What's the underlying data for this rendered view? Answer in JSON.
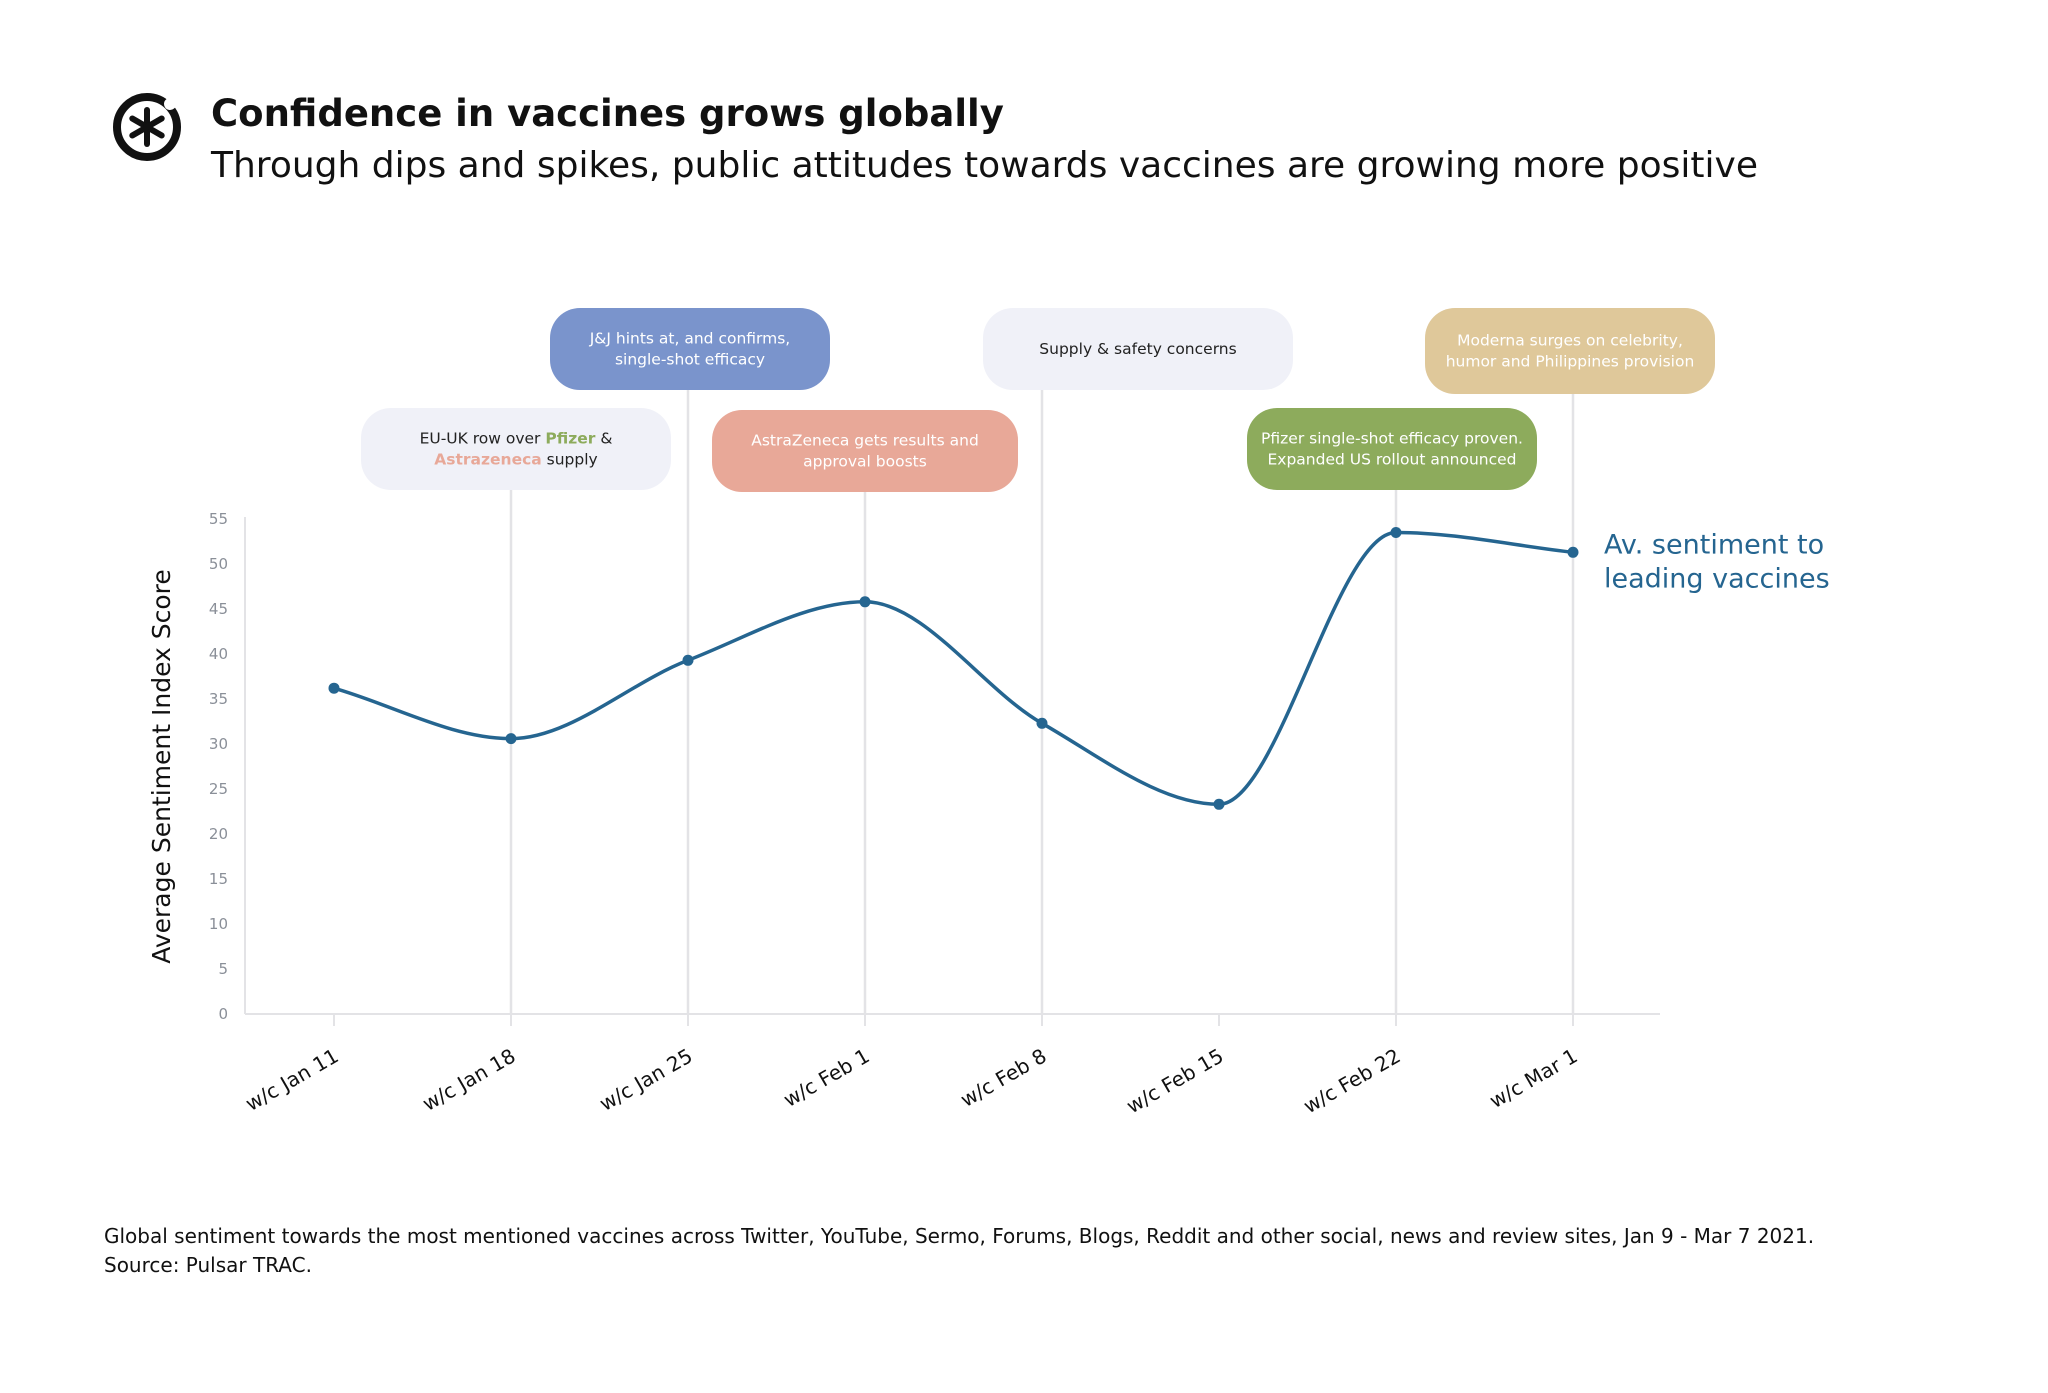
{
  "header": {
    "title": "Confidence in vaccines grows globally",
    "subtitle": "Through dips and spikes, public attitudes towards vaccines are growing more positive"
  },
  "footer": {
    "line1": "Global sentiment towards the most mentioned vaccines across Twitter, YouTube, Sermo, Forums, Blogs, Reddit and other social, news and review sites, Jan 9 - Mar 7 2021.",
    "line2": "Source: Pulsar TRAC."
  },
  "colors": {
    "line": "#256590",
    "grid": "#e3e3e6",
    "lilac": "#f0f1f8",
    "blue": "#7a94cc",
    "salmon": "#e8a898",
    "green": "#8dab5c",
    "sand": "#dfc89a",
    "pfizer_text": "#8dab5c",
    "astrazeneca_text": "#e8a898"
  },
  "chart_data": {
    "type": "line",
    "title": "",
    "xlabel": "",
    "ylabel": "Average Sentiment Index Score",
    "ylim": [
      0,
      55
    ],
    "yticks": [
      0,
      5,
      10,
      15,
      20,
      25,
      30,
      35,
      40,
      45,
      50,
      55
    ],
    "grid": false,
    "categories": [
      "w/c Jan 11",
      "w/c Jan 18",
      "w/c Jan 25",
      "w/c Feb 1",
      "w/c Feb 8",
      "w/c Feb 15",
      "w/c Feb 22",
      "w/c Mar 1"
    ],
    "series": [
      {
        "name": "Av. sentiment to leading vaccines",
        "label_lines": [
          "Av. sentiment to",
          "leading vaccines"
        ],
        "values": [
          36.2,
          30.6,
          39.3,
          45.8,
          32.3,
          23.3,
          53.5,
          51.3
        ]
      }
    ],
    "annotations": [
      {
        "category_index": 1,
        "color": "lilac",
        "text_color": "#222222",
        "lines": [
          [
            {
              "t": "EU-UK row over "
            },
            {
              "t": "Pfizer",
              "c": "pfizer_text",
              "b": true
            },
            {
              "t": " &"
            }
          ],
          [
            {
              "t": "Astrazeneca",
              "c": "astrazeneca_text",
              "b": true
            },
            {
              "t": " supply"
            }
          ]
        ]
      },
      {
        "category_index": 2,
        "color": "blue",
        "text_color": "#ffffff",
        "lines": [
          [
            {
              "t": "J&J hints at, and confirms,"
            }
          ],
          [
            {
              "t": "single-shot efficacy"
            }
          ]
        ]
      },
      {
        "category_index": 3,
        "color": "salmon",
        "text_color": "#ffffff",
        "lines": [
          [
            {
              "t": "AstraZeneca gets results and"
            }
          ],
          [
            {
              "t": "approval boosts"
            }
          ]
        ]
      },
      {
        "category_index": 4,
        "color": "lilac",
        "text_color": "#222222",
        "lines": [
          [
            {
              "t": "Supply & safety concerns"
            }
          ]
        ]
      },
      {
        "category_index": 6,
        "color": "green",
        "text_color": "#ffffff",
        "lines": [
          [
            {
              "t": "Pfizer single-shot efficacy proven."
            }
          ],
          [
            {
              "t": "Expanded US rollout announced"
            }
          ]
        ]
      },
      {
        "category_index": 7,
        "color": "sand",
        "text_color": "#ffffff",
        "lines": [
          [
            {
              "t": "Moderna surges on celebrity,"
            }
          ],
          [
            {
              "t": "humor and Philippines provision"
            }
          ]
        ]
      }
    ]
  }
}
